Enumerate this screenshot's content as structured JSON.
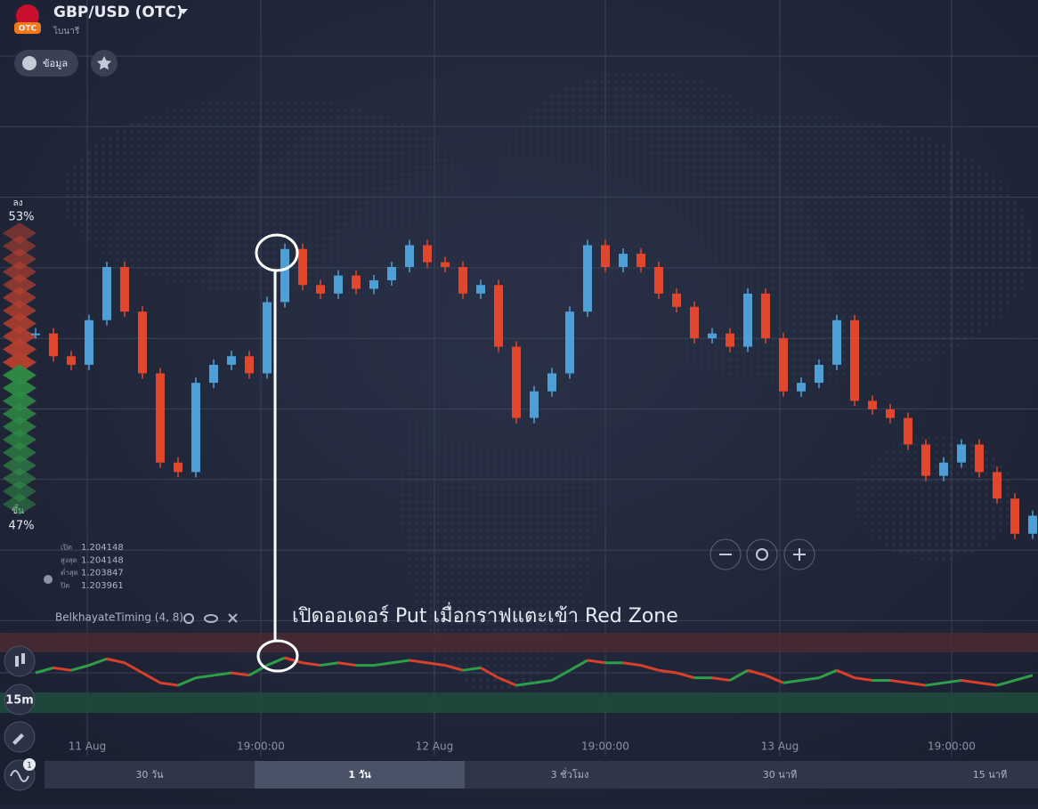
{
  "header": {
    "symbol": "GBP/USD (OTC)",
    "badge": "OTC",
    "subtitle": "ไบนารี",
    "info_button": "ข้อมูล"
  },
  "sentiment": {
    "down_label": "ลง",
    "down_percent": "53%",
    "up_label": "ขึ้น",
    "up_percent": "47%"
  },
  "ohlc": [
    {
      "label": "เปิด",
      "value": "1.204148"
    },
    {
      "label": "สูงสุด",
      "value": "1.204148"
    },
    {
      "label": "ต่ำสุด",
      "value": "1.203847"
    },
    {
      "label": "ปิด",
      "value": "1.203961"
    }
  ],
  "chart": {
    "type": "candlestick",
    "closes": [
      1.20305,
      1.20281,
      1.20272,
      1.20319,
      1.20375,
      1.20328,
      1.20263,
      1.20169,
      1.20159,
      1.20253,
      1.20272,
      1.20281,
      1.20263,
      1.20338,
      1.20394,
      1.20356,
      1.20347,
      1.20366,
      1.20352,
      1.20361,
      1.20375,
      1.20398,
      1.2038,
      1.20375,
      1.20347,
      1.20356,
      1.20291,
      1.20216,
      1.20244,
      1.20263,
      1.20328,
      1.20398,
      1.20375,
      1.20389,
      1.20375,
      1.20347,
      1.20333,
      1.203,
      1.20305,
      1.20291,
      1.20347,
      1.203,
      1.20244,
      1.20253,
      1.20272,
      1.20319,
      1.20234,
      1.20225,
      1.20216,
      1.20188,
      1.20155,
      1.20169,
      1.20188,
      1.20159,
      1.20131,
      1.20094,
      1.20113
    ],
    "ylim": [
      1.2,
      1.206
    ],
    "up_color": "#4e9fd6",
    "down_color": "#e0472d"
  },
  "indicator": {
    "name": "BelkhayateTiming (4, 8)",
    "values": [
      0,
      1,
      0.5,
      1.5,
      2.8,
      2,
      0,
      -2,
      -2.5,
      -1,
      -0.5,
      0,
      -0.5,
      1.5,
      3,
      2,
      1.5,
      2,
      1.5,
      1.5,
      2,
      2.5,
      2,
      1.5,
      0.5,
      1,
      -1,
      -2.5,
      -2,
      -1.5,
      0.5,
      2.5,
      2,
      2,
      1.5,
      0.5,
      0,
      -1,
      -1,
      -1.5,
      0.5,
      -0.5,
      -2,
      -1.5,
      -1,
      0.5,
      -1,
      -1.5,
      -1.5,
      -2,
      -2.5,
      -2,
      -1.5,
      -2,
      -2.5,
      -1.5,
      -0.5
    ],
    "ylim": [
      -8,
      8
    ],
    "rise_color": "#2f9e48",
    "fall_color": "#d8402b"
  },
  "annotation": "เปิดออเดอร์ Put เมื่อกราฟแตะเข้า Red Zone",
  "time_axis": [
    "11 Aug",
    "19:00:00",
    "12 Aug",
    "19:00:00",
    "13 Aug",
    "19:00:00"
  ],
  "toolbar": {
    "timeframe": "15m",
    "indicator_count": "1"
  },
  "periods": [
    "30 วัน",
    "1 วัน",
    "3 ชั่วโมง",
    "30 นาที",
    "15 นาที"
  ],
  "active_period": 1
}
